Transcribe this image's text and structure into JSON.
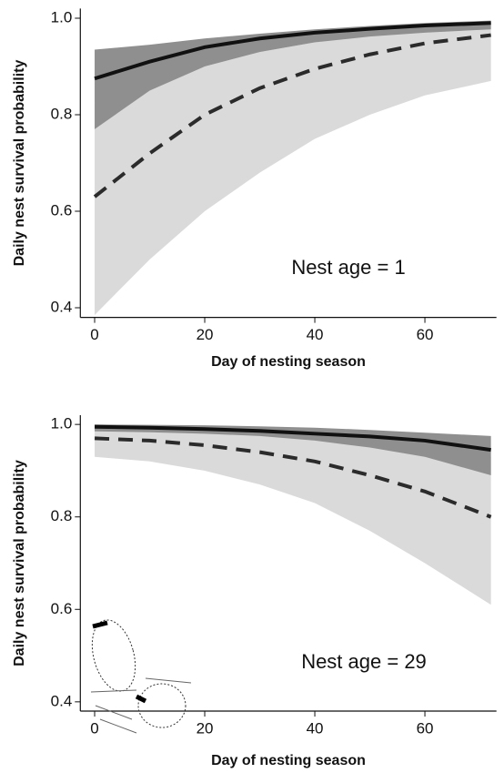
{
  "chart_data": [
    {
      "type": "line",
      "xlabel": "Day of nesting season",
      "ylabel": "Daily nest survival probability",
      "annotation": "Nest age = 1",
      "x": [
        0,
        10,
        20,
        30,
        40,
        50,
        60,
        72
      ],
      "xlim": [
        -2.6,
        73
      ],
      "xticks": [
        0,
        20,
        40,
        60
      ],
      "ylim": [
        0.38,
        1.02
      ],
      "yticks": [
        0.4,
        0.6,
        0.8,
        {
          "value": 1.0,
          "label": "1.0"
        }
      ],
      "series": [
        {
          "color": "#2b2b2b",
          "dashed": true,
          "band_color": "#dadada",
          "values": [
            0.63,
            0.72,
            0.8,
            0.855,
            0.895,
            0.925,
            0.948,
            0.965
          ],
          "lower": [
            0.385,
            0.5,
            0.6,
            0.68,
            0.75,
            0.8,
            0.84,
            0.87
          ],
          "upper": [
            0.82,
            0.86,
            0.9,
            0.93,
            0.95,
            0.965,
            0.975,
            0.985
          ]
        },
        {
          "color": "#111111",
          "dashed": false,
          "band_color": "#8f8f8f",
          "values": [
            0.875,
            0.91,
            0.94,
            0.958,
            0.97,
            0.978,
            0.985,
            0.99
          ],
          "lower": [
            0.77,
            0.85,
            0.9,
            0.93,
            0.95,
            0.962,
            0.97,
            0.977
          ],
          "upper": [
            0.935,
            0.945,
            0.958,
            0.968,
            0.977,
            0.984,
            0.99,
            0.995
          ]
        }
      ]
    },
    {
      "type": "line",
      "xlabel": "Day of nesting season",
      "ylabel": "Daily nest survival probability",
      "annotation": "Nest age = 29",
      "x": [
        0,
        10,
        20,
        30,
        40,
        50,
        60,
        72
      ],
      "xlim": [
        -2.6,
        73
      ],
      "xticks": [
        0,
        20,
        40,
        60
      ],
      "ylim": [
        0.38,
        1.02
      ],
      "yticks": [
        0.4,
        0.6,
        0.8,
        {
          "value": 1.0,
          "label": "1.0"
        }
      ],
      "series": [
        {
          "color": "#2b2b2b",
          "dashed": true,
          "band_color": "#dadada",
          "values": [
            0.97,
            0.965,
            0.955,
            0.94,
            0.92,
            0.89,
            0.855,
            0.8
          ],
          "lower": [
            0.93,
            0.92,
            0.9,
            0.87,
            0.83,
            0.77,
            0.7,
            0.61
          ],
          "upper": [
            0.99,
            0.988,
            0.985,
            0.98,
            0.97,
            0.96,
            0.95,
            0.93
          ]
        },
        {
          "color": "#111111",
          "dashed": false,
          "band_color": "#8f8f8f",
          "values": [
            0.995,
            0.993,
            0.99,
            0.986,
            0.98,
            0.974,
            0.965,
            0.945
          ],
          "lower": [
            0.985,
            0.983,
            0.98,
            0.975,
            0.965,
            0.95,
            0.93,
            0.89
          ],
          "upper": [
            1.0,
            0.999,
            0.998,
            0.996,
            0.993,
            0.988,
            0.982,
            0.975
          ]
        }
      ]
    }
  ]
}
